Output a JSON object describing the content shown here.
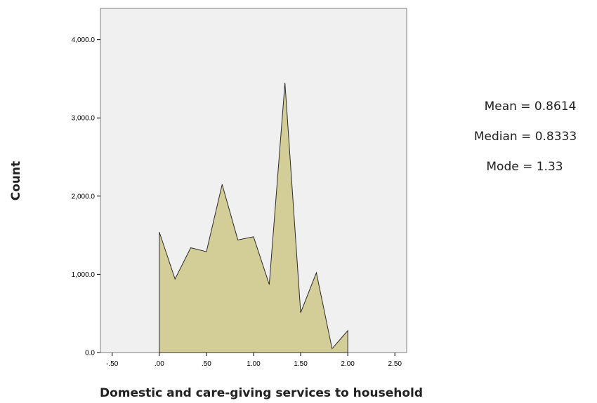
{
  "chart_data": {
    "type": "area",
    "xlabel": "Domestic and care-giving services to household",
    "ylabel": "Count",
    "xlim": [
      -0.625,
      2.625
    ],
    "ylim": [
      0,
      4400
    ],
    "grid": false,
    "x_ticks": [
      -0.5,
      0,
      0.5,
      1,
      1.5,
      2,
      2.5
    ],
    "x_tick_labels": [
      "-.50",
      ".00",
      ".50",
      "1.00",
      "1.50",
      "2.00",
      "2.50"
    ],
    "y_ticks": [
      0,
      1000,
      2000,
      3000,
      4000
    ],
    "y_tick_labels": [
      "0.0",
      "1,000.0",
      "2,000.0",
      "3,000.0",
      "4,000.0"
    ],
    "x": [
      0,
      0.1667,
      0.3333,
      0.5,
      0.6667,
      0.8333,
      1.0,
      1.1667,
      1.3333,
      1.5,
      1.6667,
      1.8333,
      2.0
    ],
    "values": [
      1540,
      940,
      1340,
      1290,
      2150,
      1440,
      1480,
      870,
      3450,
      510,
      1020,
      50,
      280
    ],
    "stats": [
      "Mean = 0.8614",
      "Median = 0.8333",
      "Mode = 1.33"
    ],
    "colors": {
      "fill": "#d3cd97",
      "stroke": "#2b2b2b",
      "plot_bg": "#f0f0f0",
      "frame": "#7f7f7f"
    }
  }
}
